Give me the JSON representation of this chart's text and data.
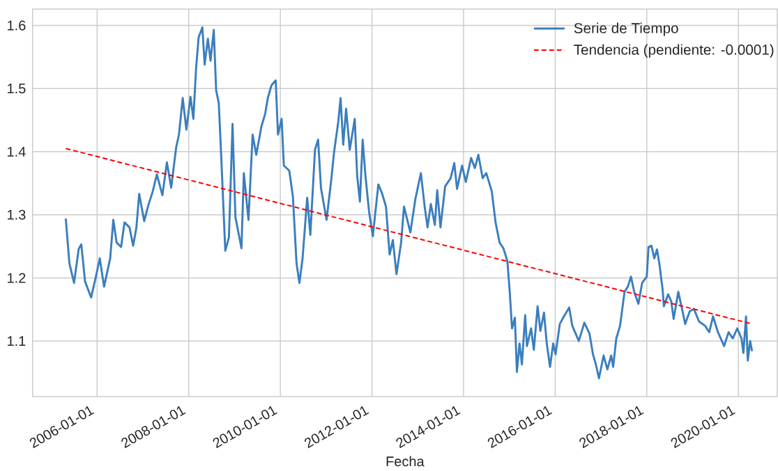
{
  "chart_data": {
    "type": "line",
    "xlabel": "Fecha",
    "xlim": [
      "2004-08-04",
      "2020-11-07"
    ],
    "ylim": [
      1.012,
      1.626
    ],
    "xticks": [
      "2006-01-01",
      "2008-01-01",
      "2010-01-01",
      "2012-01-01",
      "2014-01-01",
      "2016-01-01",
      "2018-01-01",
      "2020-01-01"
    ],
    "yticks": [
      1.1,
      1.2,
      1.3,
      1.4,
      1.5,
      1.6
    ],
    "grid": true,
    "legend": "top right",
    "series": [
      {
        "name": "Serie de Tiempo",
        "color": "#3b7ebe",
        "line_style": "solid",
        "x": [
          "2005-04-26",
          "2005-05-10",
          "2005-05-25",
          "2005-07-01",
          "2005-08-07",
          "2005-08-28",
          "2005-09-27",
          "2005-11-14",
          "2005-12-20",
          "2006-01-22",
          "2006-02-25",
          "2006-04-15",
          "2006-05-10",
          "2006-06-05",
          "2006-07-11",
          "2006-08-07",
          "2006-09-16",
          "2006-10-15",
          "2006-11-10",
          "2006-12-02",
          "2007-01-11",
          "2007-02-10",
          "2007-03-20",
          "2007-04-22",
          "2007-06-05",
          "2007-07-11",
          "2007-08-14",
          "2007-09-23",
          "2007-10-15",
          "2007-11-14",
          "2007-12-13",
          "2008-01-15",
          "2008-02-07",
          "2008-02-28",
          "2008-03-20",
          "2008-04-19",
          "2008-05-07",
          "2008-06-02",
          "2008-06-23",
          "2008-07-19",
          "2008-08-07",
          "2008-08-28",
          "2008-09-16",
          "2008-10-19",
          "2008-11-17",
          "2008-12-16",
          "2009-01-08",
          "2009-02-25",
          "2009-03-16",
          "2009-04-22",
          "2009-05-25",
          "2009-06-23",
          "2009-08-03",
          "2009-09-02",
          "2009-09-23",
          "2009-10-22",
          "2009-11-25",
          "2009-12-13",
          "2010-01-11",
          "2010-01-29",
          "2010-03-13",
          "2010-04-11",
          "2010-05-10",
          "2010-06-02",
          "2010-06-27",
          "2010-08-03",
          "2010-08-28",
          "2010-10-04",
          "2010-10-29",
          "2010-11-21",
          "2011-01-04",
          "2011-02-10",
          "2011-03-05",
          "2011-04-08",
          "2011-04-26",
          "2011-05-17",
          "2011-06-09",
          "2011-07-08",
          "2011-08-17",
          "2011-09-05",
          "2011-09-27",
          "2011-10-19",
          "2011-11-10",
          "2011-12-09",
          "2012-01-08",
          "2012-02-21",
          "2012-03-20",
          "2012-04-22",
          "2012-05-21",
          "2012-06-16",
          "2012-07-15",
          "2012-08-21",
          "2012-09-13",
          "2012-11-03",
          "2012-12-13",
          "2013-01-26",
          "2013-02-25",
          "2013-03-20",
          "2013-04-15",
          "2013-05-17",
          "2013-06-05",
          "2013-07-01",
          "2013-08-07",
          "2013-09-20",
          "2013-10-19",
          "2013-11-10",
          "2013-12-20",
          "2014-01-19",
          "2014-03-02",
          "2014-04-01",
          "2014-04-29",
          "2014-06-02",
          "2014-07-01",
          "2014-08-14",
          "2014-09-13",
          "2014-10-15",
          "2014-11-14",
          "2014-12-16",
          "2015-01-04",
          "2015-01-22",
          "2015-02-14",
          "2015-03-02",
          "2015-03-23",
          "2015-04-11",
          "2015-05-07",
          "2015-05-21",
          "2015-06-23",
          "2015-07-15",
          "2015-08-14",
          "2015-09-05",
          "2015-10-04",
          "2015-10-26",
          "2015-11-21",
          "2015-12-16",
          "2016-01-04",
          "2016-02-07",
          "2016-03-05",
          "2016-04-22",
          "2016-05-17",
          "2016-07-08",
          "2016-08-21",
          "2016-10-01",
          "2016-10-29",
          "2016-11-21",
          "2016-12-16",
          "2017-01-22",
          "2017-02-21",
          "2017-03-23",
          "2017-04-08",
          "2017-05-03",
          "2017-06-02",
          "2017-07-08",
          "2017-08-03",
          "2017-08-28",
          "2017-09-23",
          "2017-10-26",
          "2017-11-25",
          "2018-01-01",
          "2018-01-15",
          "2018-02-07",
          "2018-03-02",
          "2018-03-23",
          "2018-04-11",
          "2018-05-07",
          "2018-05-17",
          "2018-06-20",
          "2018-07-15",
          "2018-08-03",
          "2018-09-09",
          "2018-10-11",
          "2018-11-03",
          "2018-12-09",
          "2019-01-11",
          "2019-02-21",
          "2019-04-11",
          "2019-05-14",
          "2019-06-13",
          "2019-07-22",
          "2019-09-09",
          "2019-10-15",
          "2019-11-17",
          "2019-12-23",
          "2020-01-26",
          "2020-02-10",
          "2020-03-02",
          "2020-03-16",
          "2020-04-04",
          "2020-04-19"
        ],
        "values": [
          1.294,
          1.26,
          1.223,
          1.192,
          1.246,
          1.253,
          1.194,
          1.169,
          1.2,
          1.231,
          1.186,
          1.231,
          1.292,
          1.256,
          1.249,
          1.288,
          1.28,
          1.251,
          1.28,
          1.333,
          1.29,
          1.313,
          1.337,
          1.364,
          1.331,
          1.383,
          1.343,
          1.407,
          1.427,
          1.485,
          1.435,
          1.487,
          1.452,
          1.53,
          1.581,
          1.597,
          1.538,
          1.579,
          1.544,
          1.593,
          1.497,
          1.477,
          1.395,
          1.243,
          1.264,
          1.444,
          1.296,
          1.247,
          1.366,
          1.292,
          1.427,
          1.395,
          1.44,
          1.46,
          1.485,
          1.505,
          1.513,
          1.427,
          1.452,
          1.378,
          1.37,
          1.329,
          1.223,
          1.192,
          1.231,
          1.327,
          1.268,
          1.403,
          1.419,
          1.342,
          1.292,
          1.354,
          1.399,
          1.448,
          1.485,
          1.411,
          1.468,
          1.403,
          1.452,
          1.362,
          1.321,
          1.419,
          1.362,
          1.305,
          1.266,
          1.348,
          1.335,
          1.313,
          1.237,
          1.26,
          1.206,
          1.256,
          1.313,
          1.272,
          1.325,
          1.366,
          1.313,
          1.28,
          1.317,
          1.284,
          1.339,
          1.28,
          1.345,
          1.358,
          1.382,
          1.341,
          1.378,
          1.352,
          1.39,
          1.374,
          1.395,
          1.358,
          1.366,
          1.337,
          1.288,
          1.256,
          1.247,
          1.227,
          1.178,
          1.12,
          1.137,
          1.051,
          1.096,
          1.063,
          1.141,
          1.092,
          1.12,
          1.086,
          1.155,
          1.116,
          1.145,
          1.096,
          1.059,
          1.096,
          1.079,
          1.127,
          1.137,
          1.153,
          1.124,
          1.1,
          1.129,
          1.112,
          1.079,
          1.063,
          1.041,
          1.077,
          1.055,
          1.077,
          1.059,
          1.104,
          1.124,
          1.178,
          1.186,
          1.202,
          1.178,
          1.159,
          1.192,
          1.202,
          1.249,
          1.251,
          1.231,
          1.245,
          1.223,
          1.182,
          1.155,
          1.174,
          1.163,
          1.135,
          1.178,
          1.149,
          1.127,
          1.147,
          1.151,
          1.131,
          1.124,
          1.114,
          1.139,
          1.114,
          1.092,
          1.114,
          1.104,
          1.12,
          1.104,
          1.081,
          1.139,
          1.069,
          1.1,
          1.084
        ]
      },
      {
        "name": "Tendencia (pendiente: -0.0001)",
        "color": "#ff0000",
        "line_style": "dashed",
        "x": [
          "2005-04-26",
          "2020-04-19"
        ],
        "values": [
          1.405,
          1.127
        ]
      }
    ]
  }
}
